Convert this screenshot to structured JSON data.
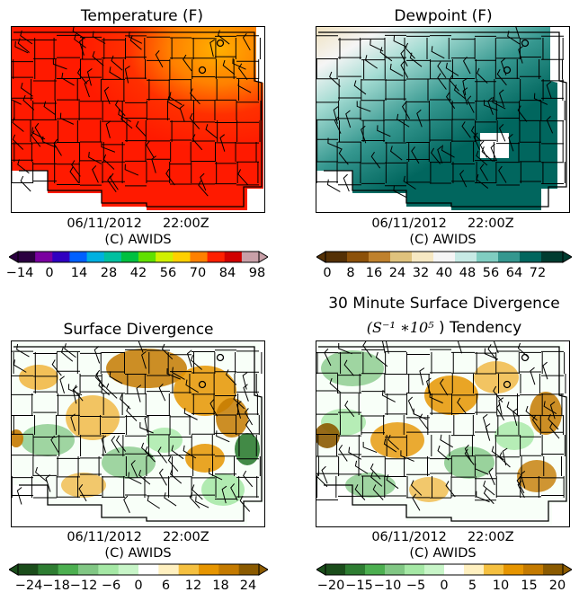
{
  "panels": [
    {
      "id": "temperature",
      "title_line1": "Temperature (F)",
      "title_line2": "",
      "date": "06/11/2012",
      "time": "22:00Z",
      "credit": "(C) AWIDS",
      "colorbar": {
        "ticks": [
          "−14",
          "0",
          "14",
          "28",
          "42",
          "56",
          "70",
          "84",
          "98"
        ],
        "colors": [
          "#2b0040",
          "#7a00a0",
          "#3000c0",
          "#0060ff",
          "#00b0e0",
          "#00c0a0",
          "#00c040",
          "#60e000",
          "#d0f000",
          "#ffd000",
          "#ff8000",
          "#ff2000",
          "#d00000",
          "#c8a0a8"
        ]
      }
    },
    {
      "id": "dewpoint",
      "title_line1": "Dewpoint (F)",
      "title_line2": "",
      "date": "06/11/2012",
      "time": "22:00Z",
      "credit": "(C) AWIDS",
      "colorbar": {
        "ticks": [
          "0",
          "8",
          "16",
          "24",
          "32",
          "40",
          "48",
          "56",
          "64",
          "72"
        ],
        "colors": [
          "#543005",
          "#8c510a",
          "#bf812d",
          "#dfc27d",
          "#f6e8c3",
          "#f5f5f5",
          "#c7eae5",
          "#80cdc1",
          "#35978f",
          "#01665e",
          "#003c30"
        ]
      }
    },
    {
      "id": "divergence",
      "title_line1": "Surface Divergence",
      "title_line2": "",
      "date": "06/11/2012",
      "time": "22:00Z",
      "credit": "(C) AWIDS",
      "colorbar": {
        "ticks": [
          "−24",
          "−18",
          "−12",
          "−6",
          "0",
          "6",
          "12",
          "18",
          "24"
        ],
        "colors": [
          "#1b4d1b",
          "#2e7d32",
          "#4caf50",
          "#81c784",
          "#a5e8a5",
          "#c8f5c8",
          "#ffffff",
          "#fff0c0",
          "#f5c040",
          "#e69500",
          "#c47a00",
          "#8b5a00"
        ]
      }
    },
    {
      "id": "div_tendency",
      "title_line1": "30 Minute Surface Divergence",
      "title_line2": ") Tendency",
      "title_math": "(S⁻¹ ∗10⁵",
      "date": "06/11/2012",
      "time": "22:00Z",
      "credit": "(C) AWIDS",
      "colorbar": {
        "ticks": [
          "−20",
          "−15",
          "−10",
          "−5",
          "0",
          "5",
          "10",
          "15",
          "20"
        ],
        "colors": [
          "#1b4d1b",
          "#2e7d32",
          "#4caf50",
          "#81c784",
          "#a5e8a5",
          "#c8f5c8",
          "#ffffff",
          "#fff0c0",
          "#f5c040",
          "#e69500",
          "#c47a00",
          "#8b5a00"
        ]
      }
    }
  ]
}
